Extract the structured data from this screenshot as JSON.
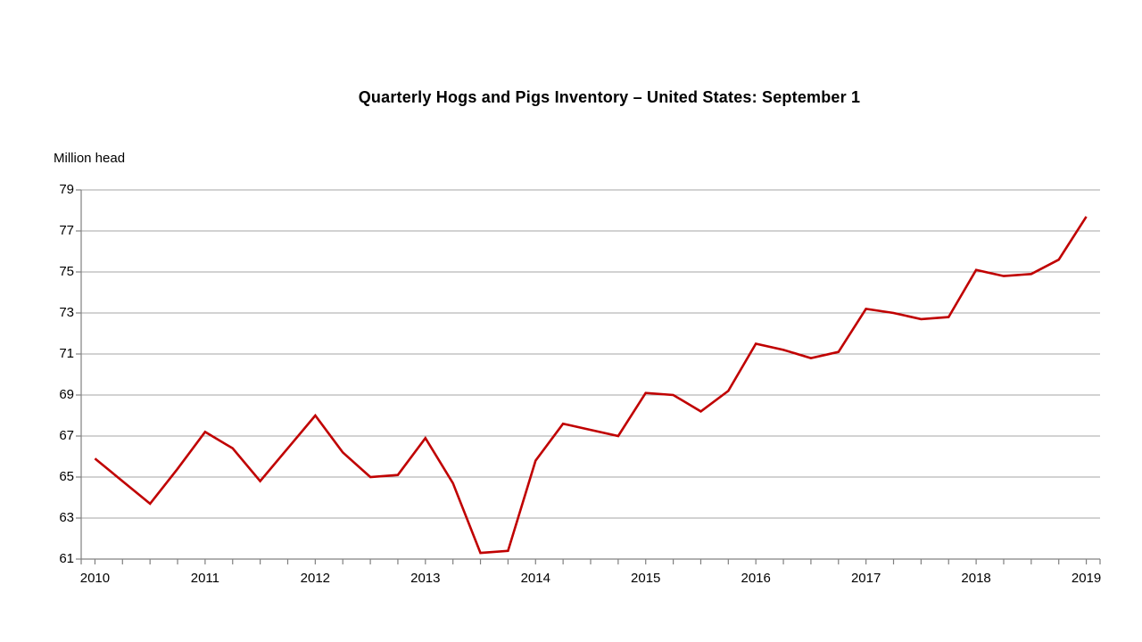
{
  "title": "Quarterly Hogs and Pigs Inventory – United States: September 1",
  "chart_data": {
    "type": "line",
    "title": "Quarterly Hogs and Pigs Inventory – United States: September 1",
    "xlabel": "",
    "ylabel": "Million head",
    "ylim": [
      61,
      79
    ],
    "y_ticks": [
      61,
      63,
      65,
      67,
      69,
      71,
      73,
      75,
      77,
      79
    ],
    "x_tick_labels": [
      "2010",
      "2011",
      "2012",
      "2013",
      "2014",
      "2015",
      "2016",
      "2017",
      "2018",
      "2019"
    ],
    "grid": "horizontal",
    "legend": "none",
    "x": [
      2010.0,
      2010.25,
      2010.5,
      2010.75,
      2011.0,
      2011.25,
      2011.5,
      2011.75,
      2012.0,
      2012.25,
      2012.5,
      2012.75,
      2013.0,
      2013.25,
      2013.5,
      2013.75,
      2014.0,
      2014.25,
      2014.5,
      2014.75,
      2015.0,
      2015.25,
      2015.5,
      2015.75,
      2016.0,
      2016.25,
      2016.5,
      2016.75,
      2017.0,
      2017.25,
      2017.5,
      2017.75,
      2018.0,
      2018.25,
      2018.5,
      2018.75,
      2019.0
    ],
    "series": [
      {
        "values": [
          65.9,
          64.8,
          63.7,
          65.4,
          67.2,
          66.4,
          64.8,
          66.4,
          68.0,
          66.2,
          65.0,
          65.1,
          66.9,
          64.7,
          61.3,
          61.4,
          65.8,
          67.6,
          67.3,
          67.0,
          69.1,
          69.0,
          68.2,
          69.2,
          71.5,
          71.2,
          70.8,
          71.1,
          73.2,
          73.0,
          72.7,
          72.8,
          75.1,
          74.8,
          74.9,
          75.6,
          77.7
        ]
      }
    ]
  },
  "colors": {
    "line": "#C00000",
    "gridline": "#A6A6A6",
    "axis": "#808080",
    "text": "#000000",
    "background": "#FFFFFF"
  }
}
